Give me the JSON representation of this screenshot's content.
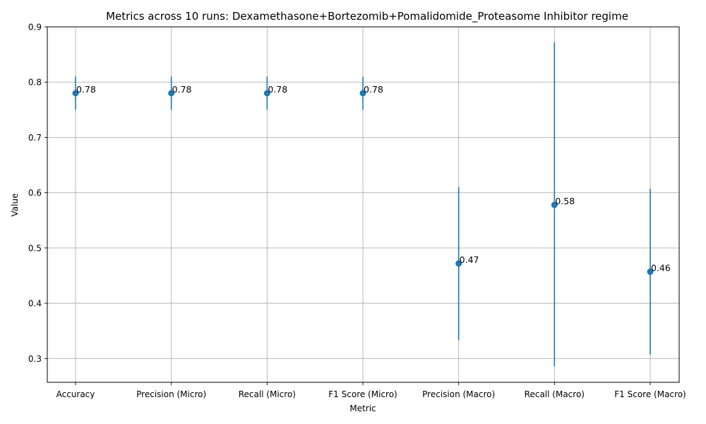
{
  "chart_data": {
    "type": "scatter",
    "title": "Metrics across 10 runs: Dexamethasone+Bortezomib+Pomalidomide_Proteasome Inhibitor regime",
    "xlabel": "Metric",
    "ylabel": "Value",
    "categories": [
      "Accuracy",
      "Precision (Micro)",
      "Recall (Micro)",
      "F1 Score (Micro)",
      "Precision (Macro)",
      "Recall (Macro)",
      "F1 Score (Macro)"
    ],
    "values": [
      0.78,
      0.78,
      0.78,
      0.78,
      0.472,
      0.578,
      0.457
    ],
    "error_low": [
      0.75,
      0.75,
      0.75,
      0.75,
      0.333,
      0.286,
      0.307
    ],
    "error_high": [
      0.81,
      0.81,
      0.81,
      0.81,
      0.61,
      0.872,
      0.607
    ],
    "data_labels": [
      "0.78",
      "0.78",
      "0.78",
      "0.78",
      "0.47",
      "0.58",
      "0.46"
    ],
    "ylim": [
      0.257,
      0.9
    ],
    "yticks": [
      0.3,
      0.4,
      0.5,
      0.6,
      0.7,
      0.8,
      0.9
    ],
    "ytick_labels": [
      "0.3",
      "0.4",
      "0.5",
      "0.6",
      "0.7",
      "0.8",
      "0.9"
    ],
    "grid": true,
    "color": "#1f77b4"
  }
}
